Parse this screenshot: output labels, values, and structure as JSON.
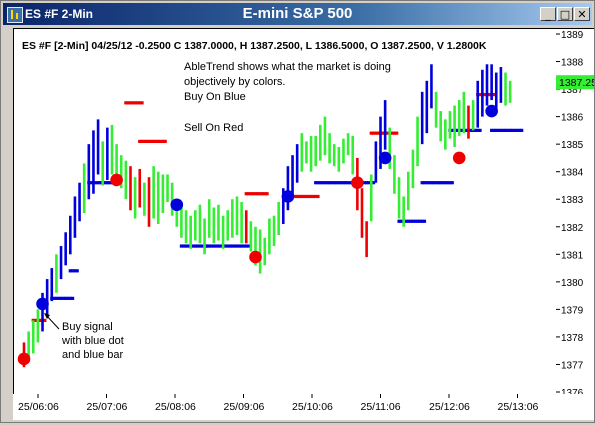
{
  "window": {
    "title": "ES #F 2-Min",
    "chart_title": "E-mini S&P 500",
    "buttons": {
      "minimize": "_",
      "maximize": "□",
      "close": "✕"
    }
  },
  "info_line": "ES #F [2-Min] 04/25/12  -0.2500 C 1387.0000, H 1387.2500, L 1386.5000, O 1387.2500, V 1.2800K",
  "annotations": {
    "description": [
      "AbleTrend shows what the market is doing",
      "objectively by colors.",
      "Buy On Blue"
    ],
    "sell": "Sell On Red",
    "buy_signal": [
      "Buy signal",
      "with blue dot",
      "and blue bar"
    ]
  },
  "price_label": "1387.25",
  "colors": {
    "up": "#33ee33",
    "blue": "#0000dd",
    "red": "#ee0000",
    "label_bg": "#33ee33"
  },
  "chart_data": {
    "type": "candlestick-bar",
    "title": "E-mini S&P 500",
    "ylim": [
      1376,
      1389
    ],
    "y_ticks": [
      1376,
      1377,
      1378,
      1379,
      1380,
      1381,
      1382,
      1383,
      1384,
      1385,
      1386,
      1387,
      1388,
      1389
    ],
    "x_ticks": [
      "25/06:06",
      "25/07:06",
      "25/08:06",
      "25/09:06",
      "25/10:06",
      "25/11:06",
      "25/12:06",
      "25/13:06"
    ],
    "bars": [
      [
        1376.9,
        1377.8,
        "r"
      ],
      [
        1377.1,
        1378.2,
        "g"
      ],
      [
        1377.4,
        1378.6,
        "g"
      ],
      [
        1377.8,
        1379.0,
        "g"
      ],
      [
        1378.2,
        1379.6,
        "b"
      ],
      [
        1378.8,
        1380.1,
        "b"
      ],
      [
        1379.3,
        1380.5,
        "b"
      ],
      [
        1379.6,
        1381.0,
        "g"
      ],
      [
        1380.1,
        1381.3,
        "b"
      ],
      [
        1380.6,
        1381.8,
        "b"
      ],
      [
        1381.0,
        1382.4,
        "b"
      ],
      [
        1381.6,
        1383.1,
        "b"
      ],
      [
        1382.2,
        1383.6,
        "b"
      ],
      [
        1382.5,
        1384.3,
        "g"
      ],
      [
        1383.0,
        1385.0,
        "b"
      ],
      [
        1383.2,
        1385.5,
        "b"
      ],
      [
        1383.9,
        1385.9,
        "b"
      ],
      [
        1383.5,
        1385.1,
        "g"
      ],
      [
        1383.7,
        1385.6,
        "b"
      ],
      [
        1383.9,
        1385.7,
        "g"
      ],
      [
        1383.6,
        1385.0,
        "g"
      ],
      [
        1383.4,
        1384.6,
        "g"
      ],
      [
        1383.0,
        1384.4,
        "g"
      ],
      [
        1382.6,
        1384.2,
        "r"
      ],
      [
        1382.3,
        1383.8,
        "g"
      ],
      [
        1382.7,
        1384.1,
        "r"
      ],
      [
        1382.4,
        1383.6,
        "g"
      ],
      [
        1382.0,
        1383.8,
        "r"
      ],
      [
        1382.3,
        1384.2,
        "g"
      ],
      [
        1382.1,
        1384.0,
        "g"
      ],
      [
        1382.5,
        1383.9,
        "g"
      ],
      [
        1382.9,
        1383.9,
        "g"
      ],
      [
        1382.4,
        1383.6,
        "g"
      ],
      [
        1382.0,
        1383.0,
        "g"
      ],
      [
        1381.6,
        1382.8,
        "g"
      ],
      [
        1381.4,
        1382.6,
        "g"
      ],
      [
        1381.2,
        1382.4,
        "g"
      ],
      [
        1381.5,
        1382.6,
        "g"
      ],
      [
        1381.4,
        1382.8,
        "g"
      ],
      [
        1381.0,
        1382.3,
        "g"
      ],
      [
        1381.6,
        1383.0,
        "g"
      ],
      [
        1381.4,
        1382.7,
        "g"
      ],
      [
        1381.5,
        1382.8,
        "g"
      ],
      [
        1381.2,
        1382.4,
        "g"
      ],
      [
        1381.5,
        1382.6,
        "g"
      ],
      [
        1381.6,
        1383.0,
        "g"
      ],
      [
        1381.7,
        1383.1,
        "g"
      ],
      [
        1381.4,
        1382.9,
        "g"
      ],
      [
        1381.4,
        1382.6,
        "r"
      ],
      [
        1381.1,
        1382.2,
        "g"
      ],
      [
        1380.6,
        1382.0,
        "g"
      ],
      [
        1380.3,
        1381.9,
        "g"
      ],
      [
        1380.6,
        1381.6,
        "g"
      ],
      [
        1381.0,
        1382.3,
        "g"
      ],
      [
        1381.3,
        1382.4,
        "g"
      ],
      [
        1381.7,
        1382.9,
        "g"
      ],
      [
        1382.1,
        1383.4,
        "b"
      ],
      [
        1382.6,
        1384.2,
        "b"
      ],
      [
        1383.1,
        1384.6,
        "b"
      ],
      [
        1383.6,
        1385.0,
        "b"
      ],
      [
        1384.0,
        1385.4,
        "g"
      ],
      [
        1384.3,
        1385.1,
        "g"
      ],
      [
        1384.0,
        1385.3,
        "g"
      ],
      [
        1384.2,
        1385.3,
        "g"
      ],
      [
        1384.4,
        1385.7,
        "g"
      ],
      [
        1384.6,
        1386.0,
        "g"
      ],
      [
        1384.3,
        1385.4,
        "g"
      ],
      [
        1384.2,
        1385.0,
        "g"
      ],
      [
        1384.0,
        1384.9,
        "g"
      ],
      [
        1384.3,
        1385.2,
        "g"
      ],
      [
        1384.6,
        1385.4,
        "g"
      ],
      [
        1383.9,
        1385.3,
        "g"
      ],
      [
        1382.6,
        1384.5,
        "r"
      ],
      [
        1381.6,
        1383.4,
        "r"
      ],
      [
        1380.9,
        1382.2,
        "r"
      ],
      [
        1382.2,
        1383.9,
        "g"
      ],
      [
        1383.6,
        1385.1,
        "b"
      ],
      [
        1384.1,
        1386.0,
        "b"
      ],
      [
        1384.8,
        1386.6,
        "b"
      ],
      [
        1384.1,
        1385.6,
        "g"
      ],
      [
        1383.2,
        1384.6,
        "g"
      ],
      [
        1382.3,
        1383.8,
        "g"
      ],
      [
        1382.0,
        1383.1,
        "g"
      ],
      [
        1382.6,
        1384.0,
        "g"
      ],
      [
        1383.4,
        1384.8,
        "g"
      ],
      [
        1384.2,
        1386.0,
        "g"
      ],
      [
        1385.0,
        1386.9,
        "b"
      ],
      [
        1385.4,
        1387.3,
        "b"
      ],
      [
        1386.3,
        1387.9,
        "b"
      ],
      [
        1385.6,
        1386.9,
        "g"
      ],
      [
        1385.1,
        1386.2,
        "g"
      ],
      [
        1384.8,
        1385.9,
        "g"
      ],
      [
        1385.2,
        1386.2,
        "g"
      ],
      [
        1384.9,
        1386.4,
        "g"
      ],
      [
        1385.3,
        1386.6,
        "g"
      ],
      [
        1385.4,
        1386.9,
        "g"
      ],
      [
        1385.2,
        1386.4,
        "r"
      ],
      [
        1385.5,
        1386.6,
        "g"
      ],
      [
        1385.6,
        1387.3,
        "b"
      ],
      [
        1386.0,
        1387.7,
        "b"
      ],
      [
        1386.4,
        1387.9,
        "b"
      ],
      [
        1386.6,
        1387.9,
        "b"
      ],
      [
        1386.2,
        1387.6,
        "b"
      ],
      [
        1386.5,
        1387.8,
        "b"
      ],
      [
        1386.4,
        1387.6,
        "g"
      ],
      [
        1386.5,
        1387.3,
        "g"
      ]
    ],
    "stops": [
      {
        "from": 2,
        "to": 4,
        "y": 1378.6,
        "c": "r"
      },
      {
        "from": 6,
        "to": 10,
        "y": 1379.4,
        "c": "b"
      },
      {
        "from": 10,
        "to": 11,
        "y": 1380.4,
        "c": "b"
      },
      {
        "from": 14,
        "to": 19,
        "y": 1383.6,
        "c": "b"
      },
      {
        "from": 22,
        "to": 25,
        "y": 1386.5,
        "c": "r"
      },
      {
        "from": 25,
        "to": 30,
        "y": 1385.1,
        "c": "r"
      },
      {
        "from": 34,
        "to": 39,
        "y": 1381.3,
        "c": "b"
      },
      {
        "from": 39,
        "to": 48,
        "y": 1381.3,
        "c": "b"
      },
      {
        "from": 48,
        "to": 52,
        "y": 1383.2,
        "c": "r"
      },
      {
        "from": 57,
        "to": 63,
        "y": 1383.1,
        "c": "r"
      },
      {
        "from": 63,
        "to": 75,
        "y": 1383.6,
        "c": "b"
      },
      {
        "from": 75,
        "to": 80,
        "y": 1385.4,
        "c": "r"
      },
      {
        "from": 81,
        "to": 86,
        "y": 1382.2,
        "c": "b"
      },
      {
        "from": 86,
        "to": 92,
        "y": 1383.6,
        "c": "b"
      },
      {
        "from": 92,
        "to": 98,
        "y": 1385.5,
        "c": "b"
      },
      {
        "from": 98,
        "to": 101,
        "y": 1386.8,
        "c": "r"
      },
      {
        "from": 101,
        "to": 107,
        "y": 1385.5,
        "c": "b"
      }
    ],
    "signals": [
      {
        "i": 0,
        "y": 1377.2,
        "c": "r"
      },
      {
        "i": 4,
        "y": 1379.2,
        "c": "b"
      },
      {
        "i": 20,
        "y": 1383.7,
        "c": "r"
      },
      {
        "i": 33,
        "y": 1382.8,
        "c": "b"
      },
      {
        "i": 50,
        "y": 1380.9,
        "c": "r"
      },
      {
        "i": 57,
        "y": 1383.1,
        "c": "b"
      },
      {
        "i": 72,
        "y": 1383.6,
        "c": "r"
      },
      {
        "i": 78,
        "y": 1384.5,
        "c": "b"
      },
      {
        "i": 94,
        "y": 1384.5,
        "c": "r"
      },
      {
        "i": 101,
        "y": 1386.2,
        "c": "b"
      }
    ]
  }
}
